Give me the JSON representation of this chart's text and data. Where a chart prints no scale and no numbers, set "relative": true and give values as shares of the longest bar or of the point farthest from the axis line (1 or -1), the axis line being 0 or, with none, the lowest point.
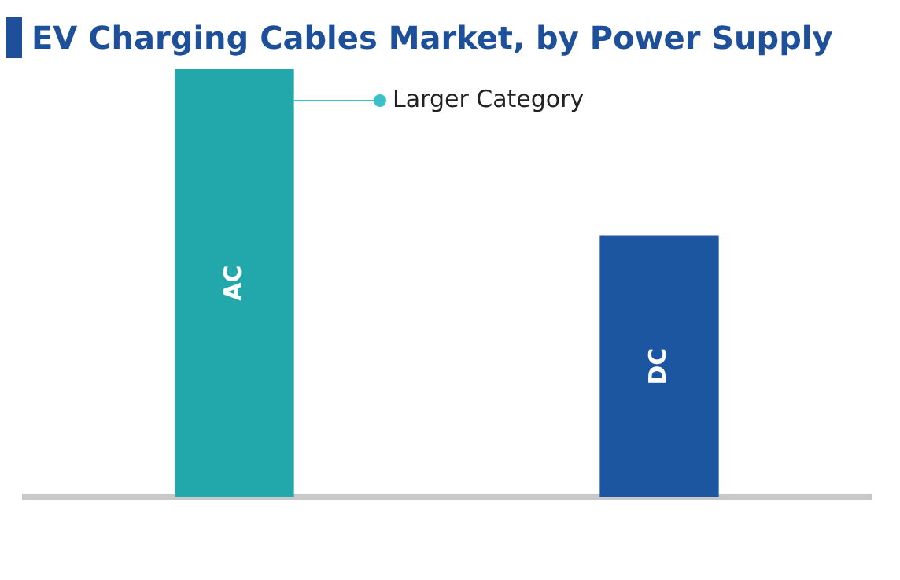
{
  "chart_data": {
    "type": "bar",
    "title": "EV Charging Cables Market, by Power Supply",
    "categories": [
      "AC",
      "DC"
    ],
    "relative": true,
    "values": [
      1,
      0.61
    ],
    "colors": [
      "#22a8aa",
      "#1d56a0"
    ],
    "annotations": [
      "Larger Category"
    ],
    "grid": false,
    "legend": false
  }
}
